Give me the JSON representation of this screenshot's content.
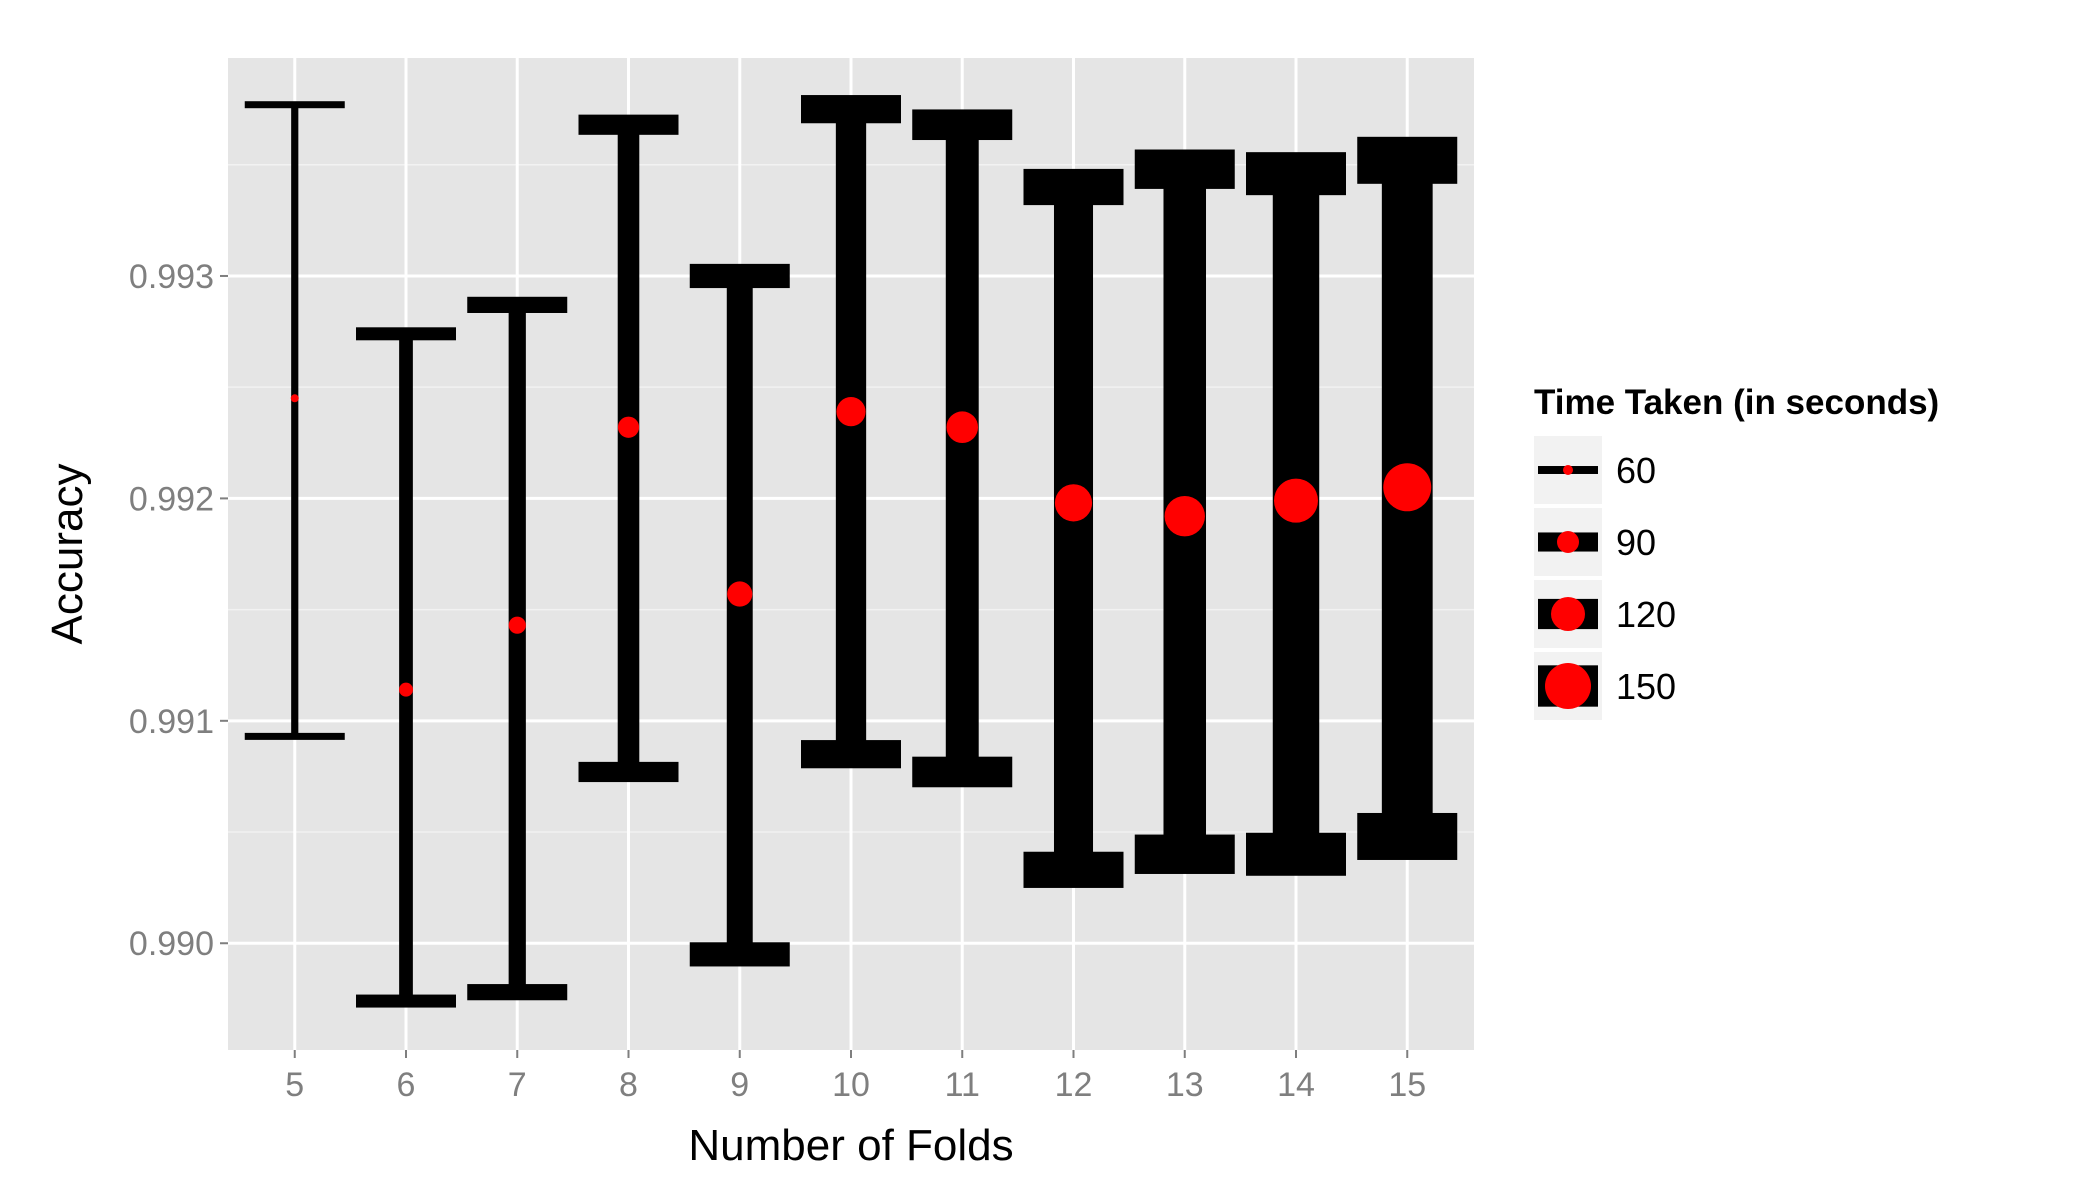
{
  "chart_data": {
    "type": "errorbar",
    "xlabel": "Number of Folds",
    "ylabel": "Accuracy",
    "x_ticks": [
      "5",
      "6",
      "7",
      "8",
      "9",
      "10",
      "11",
      "12",
      "13",
      "14",
      "15"
    ],
    "y_ticks": [
      {
        "value": 0.99,
        "label": "0.990"
      },
      {
        "value": 0.991,
        "label": "0.991"
      },
      {
        "value": 0.992,
        "label": "0.992"
      },
      {
        "value": 0.993,
        "label": "0.993"
      }
    ],
    "ylim": [
      0.98952,
      0.99398
    ],
    "xlim": [
      4.4,
      15.6
    ],
    "grid": true,
    "legend_position": "right",
    "legend_title": "Time Taken (in seconds)",
    "legend_entries": [
      {
        "label": "60",
        "time": 60
      },
      {
        "label": "90",
        "time": 90
      },
      {
        "label": "120",
        "time": 120
      },
      {
        "label": "150",
        "time": 150
      }
    ],
    "points": [
      {
        "folds": 5,
        "accuracy": 0.99245,
        "ymin": 0.99093,
        "ymax": 0.99377,
        "time": 55
      },
      {
        "folds": 6,
        "accuracy": 0.99114,
        "ymin": 0.98974,
        "ymax": 0.99274,
        "time": 70
      },
      {
        "folds": 7,
        "accuracy": 0.99143,
        "ymin": 0.98978,
        "ymax": 0.99287,
        "time": 78
      },
      {
        "folds": 8,
        "accuracy": 0.99232,
        "ymin": 0.99077,
        "ymax": 0.99368,
        "time": 88
      },
      {
        "folds": 9,
        "accuracy": 0.99157,
        "ymin": 0.98995,
        "ymax": 0.993,
        "time": 98
      },
      {
        "folds": 10,
        "accuracy": 0.99239,
        "ymin": 0.99085,
        "ymax": 0.99375,
        "time": 108
      },
      {
        "folds": 11,
        "accuracy": 0.99232,
        "ymin": 0.99077,
        "ymax": 0.99368,
        "time": 114
      },
      {
        "folds": 12,
        "accuracy": 0.99198,
        "ymin": 0.99033,
        "ymax": 0.9934,
        "time": 128
      },
      {
        "folds": 13,
        "accuracy": 0.99192,
        "ymin": 0.9904,
        "ymax": 0.99348,
        "time": 136
      },
      {
        "folds": 14,
        "accuracy": 0.99199,
        "ymin": 0.9904,
        "ymax": 0.99346,
        "time": 145
      },
      {
        "folds": 15,
        "accuracy": 0.99205,
        "ymin": 0.99048,
        "ymax": 0.99352,
        "time": 155
      }
    ],
    "colors": {
      "panel": "#e5e5e5",
      "grid_major": "#ffffff",
      "grid_minor": "#f2f2f2",
      "errorbar": "#000000",
      "point": "#ff0000",
      "tick_text": "#7f7f7f",
      "legend_key_bg": "#f2f2f2"
    }
  }
}
